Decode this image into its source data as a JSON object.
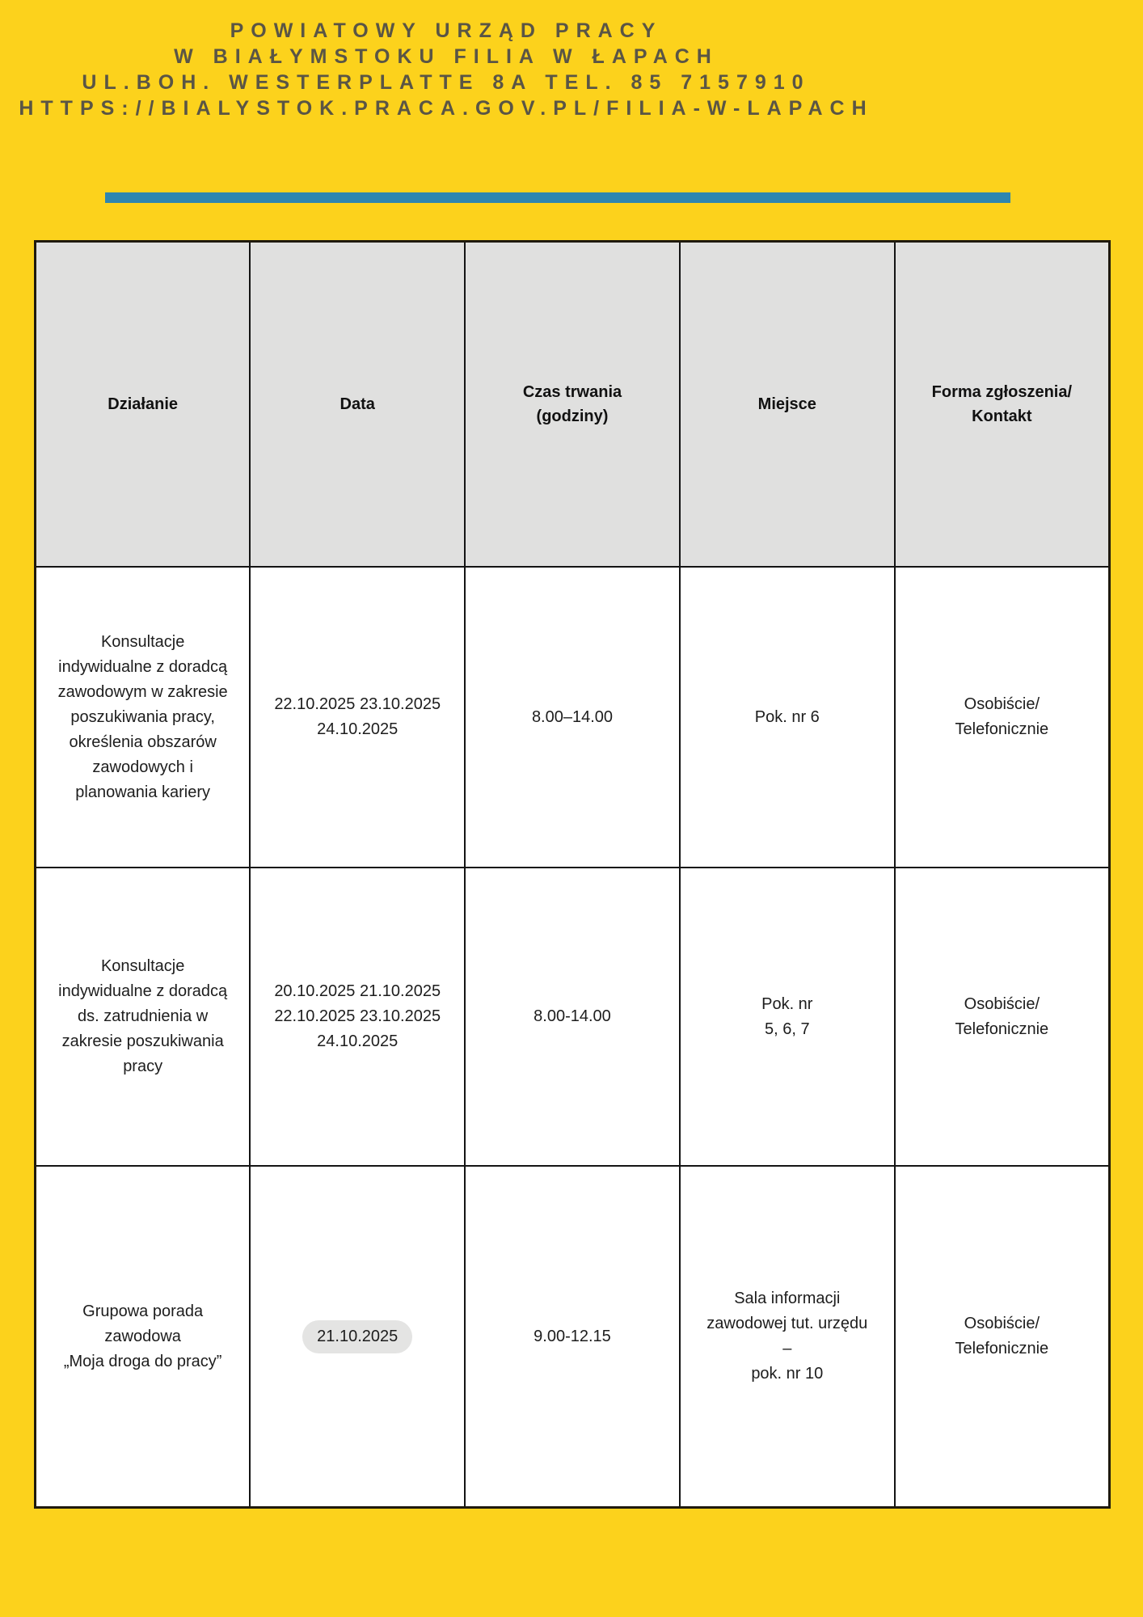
{
  "page": {
    "background_color": "#FCD21C",
    "divider_color": "#2E86B0",
    "header_text_color": "#5A5545",
    "table_header_bg": "#E0E0DF",
    "table_body_bg": "#FFFFFF",
    "highlight_pill_bg": "#E4E4E3"
  },
  "header": {
    "line1": "POWIATOWY URZĄD PRACY",
    "line2": "W BIAŁYMSTOKU FILIA W ŁAPACH",
    "line3": "UL.BOH. WESTERPLATTE 8A TEL. 85 7157910",
    "line4": "HTTPS://BIALYSTOK.PRACA.GOV.PL/FILIA-W-LAPACH"
  },
  "table": {
    "headers": {
      "action": "Działanie",
      "date": "Data",
      "duration": "Czas trwania\n(godziny)",
      "place": "Miejsce",
      "contact": "Forma zgłoszenia/\nKontakt"
    },
    "rows": [
      {
        "action": "Konsultacje\nindywidualne z doradcą\nzawodowym w zakresie\nposzukiwania pracy,\nokreślenia obszarów\nzawodowych i\nplanowania kariery",
        "date": "22.10.2025 23.10.2025\n24.10.2025",
        "duration": "8.00–14.00",
        "place": "Pok. nr 6",
        "contact": "Osobiście/\nTelefonicznie"
      },
      {
        "action": "Konsultacje\nindywidualne z doradcą\nds. zatrudnienia w\nzakresie poszukiwania\npracy",
        "date": "20.10.2025 21.10.2025\n22.10.2025 23.10.2025\n24.10.2025",
        "duration": "8.00-14.00",
        "place": "Pok. nr\n5, 6, 7",
        "contact": "Osobiście/\nTelefonicznie"
      },
      {
        "action": "Grupowa porada\nzawodowa\n„Moja droga do pracy”",
        "date": "21.10.2025",
        "date_highlighted": true,
        "duration": "9.00-12.15",
        "place": "Sala informacji\nzawodowej tut. urzędu\n–\npok. nr 10",
        "contact": "Osobiście/\nTelefonicznie"
      }
    ]
  }
}
